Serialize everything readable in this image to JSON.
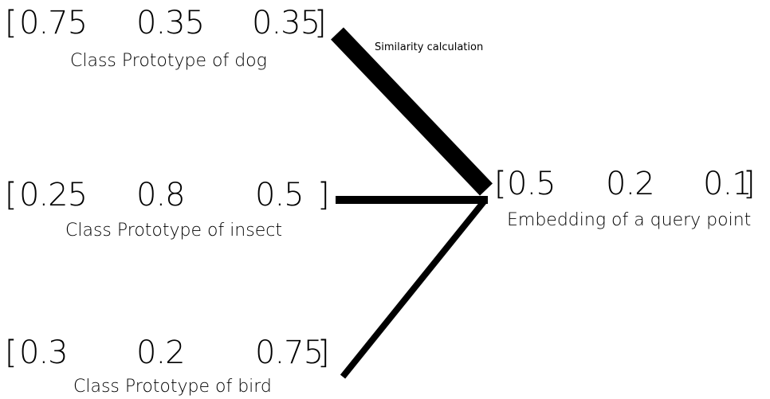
{
  "prototypes": [
    {
      "values": [
        "0.75",
        "0.35",
        "0.35"
      ],
      "caption": "Class Prototype of dog"
    },
    {
      "values": [
        "0.25",
        "0.8",
        "0.5"
      ],
      "caption": "Class Prototype of insect"
    },
    {
      "values": [
        "0.3",
        "0.2",
        "0.75"
      ],
      "caption": "Class Prototype of bird"
    }
  ],
  "query": {
    "values": [
      "0.5",
      "0.2",
      "0.1"
    ],
    "caption": "Embedding of a query point"
  },
  "edge_label": "Similarity calculation",
  "brackets": {
    "open": "[",
    "close": "]"
  },
  "colors": {
    "ink": "#000000",
    "background": "#ffffff"
  }
}
